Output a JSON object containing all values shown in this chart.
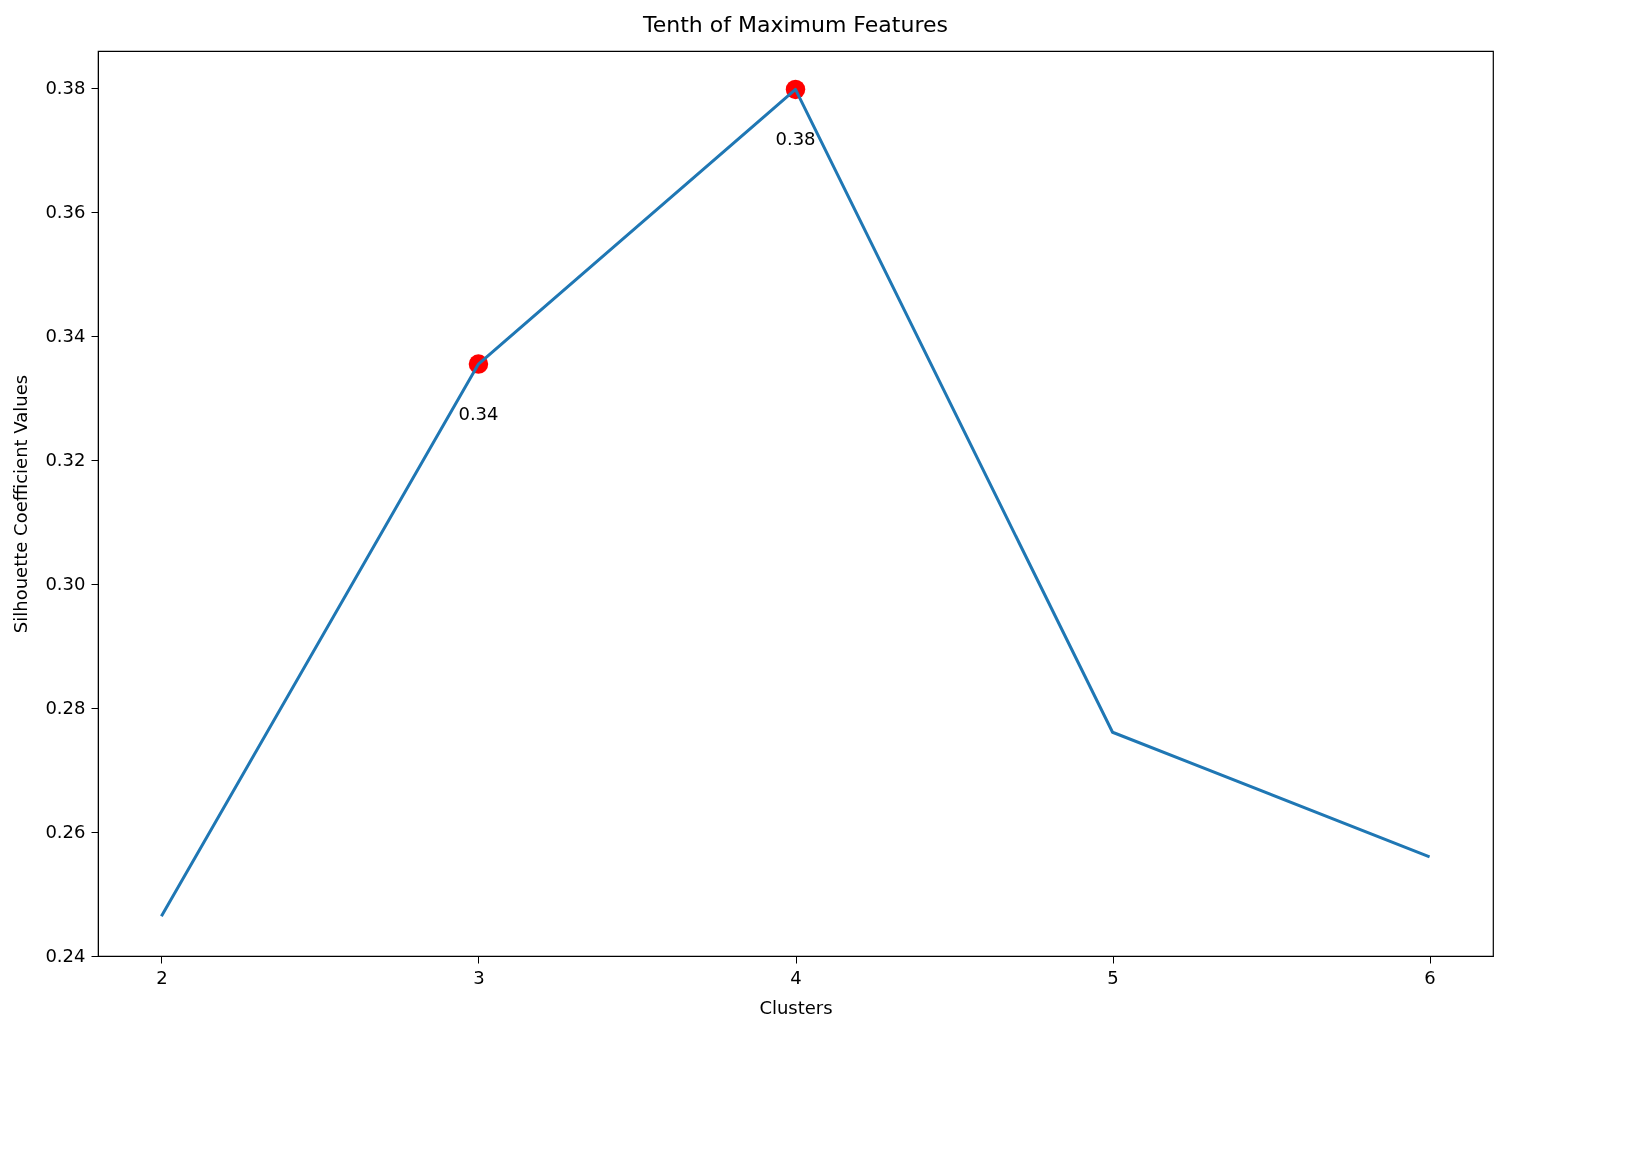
{
  "chart_data": {
    "type": "line",
    "title": "Tenth of Maximum Features",
    "xlabel": "Clusters",
    "ylabel": "Silhouette Coefficient Values",
    "xlim": [
      1.8,
      6.2
    ],
    "ylim": [
      0.24,
      0.386
    ],
    "xticks": [
      2,
      3,
      4,
      5,
      6
    ],
    "yticks": [
      0.24,
      0.26,
      0.28,
      {
        "value": 0.3,
        "label": "0.30"
      },
      0.32,
      0.34,
      0.36,
      0.38
    ],
    "grid": false,
    "series": [
      {
        "color": "#1f77b4",
        "x": [
          2,
          3,
          4,
          5,
          6
        ],
        "values": [
          0.2464,
          0.3355,
          0.3798,
          0.2761,
          0.256
        ]
      },
      {
        "type": "scatter",
        "marker": "circle",
        "color": "#ff0000",
        "x": [
          3,
          4
        ],
        "values": [
          0.3355,
          0.3798
        ],
        "value_labels": [
          "0.34",
          "0.38"
        ]
      }
    ]
  }
}
